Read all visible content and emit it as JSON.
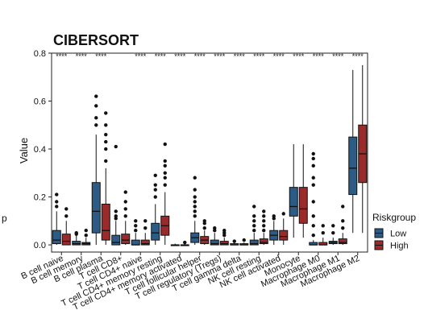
{
  "stray_label": "p",
  "chart_data": {
    "type": "box",
    "title": "CIBERSORT",
    "xlabel": "",
    "ylabel": "Value",
    "ylim": [
      -0.03,
      0.8
    ],
    "yticks": [
      0.0,
      0.2,
      0.4,
      0.6,
      0.8
    ],
    "ytick_labels": [
      "0.0",
      "0.2",
      "0.4",
      "0.6",
      "0.8"
    ],
    "grid": false,
    "legend": {
      "title": "Riskgroup",
      "position": "right",
      "entries": [
        {
          "name": "Low",
          "color": "#2c5c86"
        },
        {
          "name": "High",
          "color": "#9b2a2a"
        }
      ]
    },
    "categories": [
      "B cell naive",
      "B cell memory",
      "B cell plasma",
      "T cell CD8+",
      "T cell CD4+ naive",
      "T cell CD4+ memory resting",
      "T cell CD4+ memory activated",
      "T cell follicular helper",
      "T cell regulatory (Tregs)",
      "T cell gamma delta",
      "NK cell resting",
      "NK cell activated",
      "Monocyte",
      "Macrophage M0",
      "Macrophage M1",
      "Macrophage M2"
    ],
    "significance": [
      "****",
      "****",
      "****",
      "",
      "****",
      "****",
      "****",
      "****",
      "****",
      "****",
      "****",
      "****",
      "****",
      "****",
      "****",
      "****"
    ],
    "series": [
      {
        "name": "Low",
        "color": "#2c5c86",
        "boxes": [
          {
            "min": 0.0,
            "q1": 0.005,
            "median": 0.02,
            "q3": 0.06,
            "max": 0.14,
            "outliers": [
              0.16,
              0.18,
              0.21
            ]
          },
          {
            "min": 0.0,
            "q1": 0.0,
            "median": 0.005,
            "q3": 0.015,
            "max": 0.04,
            "outliers": [
              0.045,
              0.05
            ]
          },
          {
            "min": 0.0,
            "q1": 0.05,
            "median": 0.14,
            "q3": 0.26,
            "max": 0.46,
            "outliers": [
              0.5,
              0.53,
              0.58,
              0.62
            ]
          },
          {
            "min": 0.0,
            "q1": 0.0,
            "median": 0.01,
            "q3": 0.04,
            "max": 0.1,
            "outliers": [
              0.11,
              0.12,
              0.14,
              0.41
            ]
          },
          {
            "min": 0.0,
            "q1": 0.0,
            "median": 0.0,
            "q3": 0.02,
            "max": 0.05,
            "outliers": [
              0.06,
              0.08,
              0.1
            ]
          },
          {
            "min": 0.0,
            "q1": 0.02,
            "median": 0.05,
            "q3": 0.09,
            "max": 0.17,
            "outliers": [
              0.2,
              0.23,
              0.25,
              0.29
            ]
          },
          {
            "min": 0.0,
            "q1": 0.0,
            "median": 0.0,
            "q3": 0.0,
            "max": 0.005,
            "outliers": []
          },
          {
            "min": 0.0,
            "q1": 0.01,
            "median": 0.03,
            "q3": 0.05,
            "max": 0.1,
            "outliers": [
              0.12,
              0.14,
              0.16,
              0.18,
              0.2,
              0.23,
              0.28
            ]
          },
          {
            "min": 0.0,
            "q1": 0.0,
            "median": 0.005,
            "q3": 0.02,
            "max": 0.05,
            "outliers": [
              0.06,
              0.07
            ]
          },
          {
            "min": 0.0,
            "q1": 0.0,
            "median": 0.0,
            "q3": 0.005,
            "max": 0.01,
            "outliers": [
              0.015
            ]
          },
          {
            "min": 0.0,
            "q1": 0.0,
            "median": 0.005,
            "q3": 0.02,
            "max": 0.05,
            "outliers": [
              0.06,
              0.08,
              0.1,
              0.12,
              0.16
            ]
          },
          {
            "min": 0.0,
            "q1": 0.02,
            "median": 0.04,
            "q3": 0.06,
            "max": 0.1,
            "outliers": [
              0.11,
              0.12
            ]
          },
          {
            "min": 0.03,
            "q1": 0.12,
            "median": 0.16,
            "q3": 0.24,
            "max": 0.42,
            "outliers": []
          },
          {
            "min": 0.0,
            "q1": 0.0,
            "median": 0.0,
            "q3": 0.01,
            "max": 0.02,
            "outliers": [
              0.04,
              0.08,
              0.12,
              0.18,
              0.25,
              0.28,
              0.33,
              0.36,
              0.38
            ]
          },
          {
            "min": 0.0,
            "q1": 0.005,
            "median": 0.01,
            "q3": 0.015,
            "max": 0.03,
            "outliers": [
              0.05,
              0.08
            ]
          },
          {
            "min": 0.05,
            "q1": 0.21,
            "median": 0.32,
            "q3": 0.45,
            "max": 0.73,
            "outliers": []
          }
        ]
      },
      {
        "name": "High",
        "color": "#9b2a2a",
        "boxes": [
          {
            "min": 0.0,
            "q1": 0.0,
            "median": 0.015,
            "q3": 0.045,
            "max": 0.1,
            "outliers": [
              0.12,
              0.15
            ]
          },
          {
            "min": 0.0,
            "q1": 0.0,
            "median": 0.005,
            "q3": 0.01,
            "max": 0.03,
            "outliers": [
              0.04,
              0.06
            ]
          },
          {
            "min": 0.0,
            "q1": 0.02,
            "median": 0.06,
            "q3": 0.17,
            "max": 0.32,
            "outliers": [
              0.35,
              0.4,
              0.43,
              0.46,
              0.5,
              0.55
            ]
          },
          {
            "min": 0.0,
            "q1": 0.005,
            "median": 0.02,
            "q3": 0.045,
            "max": 0.1,
            "outliers": [
              0.12,
              0.15,
              0.18,
              0.22
            ]
          },
          {
            "min": 0.0,
            "q1": 0.0,
            "median": 0.005,
            "q3": 0.02,
            "max": 0.05,
            "outliers": [
              0.07,
              0.1
            ]
          },
          {
            "min": 0.0,
            "q1": 0.04,
            "median": 0.08,
            "q3": 0.12,
            "max": 0.22,
            "outliers": [
              0.25,
              0.28,
              0.3,
              0.33,
              0.35,
              0.42
            ]
          },
          {
            "min": 0.0,
            "q1": 0.0,
            "median": 0.0,
            "q3": 0.0,
            "max": 0.005,
            "outliers": [
              0.01
            ]
          },
          {
            "min": 0.0,
            "q1": 0.005,
            "median": 0.02,
            "q3": 0.035,
            "max": 0.06,
            "outliers": [
              0.07,
              0.09,
              0.1
            ]
          },
          {
            "min": 0.0,
            "q1": 0.0,
            "median": 0.005,
            "q3": 0.015,
            "max": 0.03,
            "outliers": [
              0.04,
              0.05,
              0.06
            ]
          },
          {
            "min": 0.0,
            "q1": 0.0,
            "median": 0.0,
            "q3": 0.005,
            "max": 0.01,
            "outliers": [
              0.02
            ]
          },
          {
            "min": 0.0,
            "q1": 0.005,
            "median": 0.01,
            "q3": 0.025,
            "max": 0.05,
            "outliers": [
              0.06,
              0.08,
              0.1,
              0.12,
              0.14
            ]
          },
          {
            "min": 0.0,
            "q1": 0.02,
            "median": 0.035,
            "q3": 0.06,
            "max": 0.11,
            "outliers": [
              0.13
            ]
          },
          {
            "min": 0.03,
            "q1": 0.09,
            "median": 0.15,
            "q3": 0.24,
            "max": 0.42,
            "outliers": []
          },
          {
            "min": 0.0,
            "q1": 0.0,
            "median": 0.0,
            "q3": 0.01,
            "max": 0.03,
            "outliers": [
              0.05,
              0.08
            ]
          },
          {
            "min": 0.0,
            "q1": 0.005,
            "median": 0.01,
            "q3": 0.025,
            "max": 0.05,
            "outliers": [
              0.07,
              0.1,
              0.16
            ]
          },
          {
            "min": 0.05,
            "q1": 0.26,
            "median": 0.38,
            "q3": 0.5,
            "max": 0.75,
            "outliers": []
          }
        ]
      }
    ]
  }
}
